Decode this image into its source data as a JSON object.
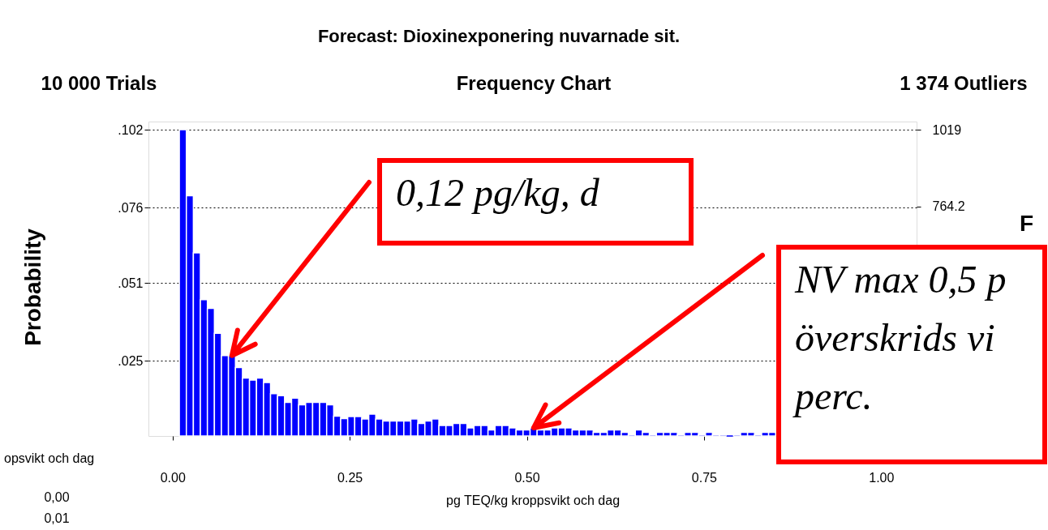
{
  "chart_data": {
    "type": "histogram",
    "title": "Forecast: Dioxinexponering nuvarnade sit.",
    "subtitle": "Frequency Chart",
    "xlabel": "pg TEQ/kg kroppsvikt och dag",
    "ylabel": "Probability",
    "y2label": "F",
    "bins": [
      0.0096,
      0.0195,
      0.0294,
      0.0393,
      0.0492,
      0.0591,
      0.069,
      0.0789,
      0.0888,
      0.0987,
      0.1086,
      0.1185,
      0.1284,
      0.1383,
      0.1482,
      0.1581,
      0.168,
      0.1779,
      0.1878,
      0.1977,
      0.2076,
      0.2175,
      0.2274,
      0.2373,
      0.2472,
      0.2571,
      0.267,
      0.2769,
      0.2868,
      0.2967,
      0.3066,
      0.3165,
      0.3264,
      0.3363,
      0.3462,
      0.3561,
      0.366,
      0.3759,
      0.3858,
      0.3957,
      0.4056,
      0.4155,
      0.4254,
      0.4353,
      0.4452,
      0.4551,
      0.465,
      0.4749,
      0.4848,
      0.4947,
      0.5046,
      0.5145,
      0.5244,
      0.5343,
      0.5442,
      0.5541,
      0.564,
      0.5739,
      0.5838,
      0.5937,
      0.6036,
      0.6135,
      0.6234,
      0.6333,
      0.6432,
      0.6531,
      0.663,
      0.6729,
      0.6828,
      0.6927,
      0.7026,
      0.7125,
      0.7224,
      0.7323,
      0.7422,
      0.7521,
      0.762,
      0.7719,
      0.7818,
      0.7917,
      0.8016,
      0.8115,
      0.8214,
      0.8313,
      0.8412,
      0.8511
    ],
    "values": [
      0.102,
      0.08,
      0.061,
      0.0454,
      0.0425,
      0.0342,
      0.0268,
      0.0268,
      0.0228,
      0.0193,
      0.0186,
      0.0193,
      0.0178,
      0.0141,
      0.0134,
      0.0112,
      0.0126,
      0.0104,
      0.0112,
      0.0112,
      0.0112,
      0.0104,
      0.0066,
      0.0058,
      0.0065,
      0.0065,
      0.0057,
      0.0073,
      0.0057,
      0.005,
      0.005,
      0.005,
      0.005,
      0.0057,
      0.0042,
      0.005,
      0.0057,
      0.0035,
      0.0035,
      0.0042,
      0.0042,
      0.0027,
      0.0035,
      0.0035,
      0.002,
      0.0035,
      0.0035,
      0.0027,
      0.002,
      0.002,
      0.0027,
      0.002,
      0.002,
      0.0027,
      0.0027,
      0.0027,
      0.002,
      0.002,
      0.002,
      0.0012,
      0.0012,
      0.002,
      0.002,
      0.0012,
      0.0005,
      0.002,
      0.0012,
      0.0005,
      0.0012,
      0.0012,
      0.0012,
      0.0005,
      0.0012,
      0.0012,
      0.0005,
      0.0012,
      0.0005,
      0.0005,
      0,
      0.0005,
      0.0012,
      0.0012,
      0.0005,
      0.0012,
      0.0012
    ],
    "color": "#0000ff",
    "xlim": [
      -0.034,
      1.05
    ],
    "xticks": [
      {
        "value": 0,
        "label": "0.00"
      },
      {
        "value": 0.25,
        "label": "0.25"
      },
      {
        "value": 0.5,
        "label": "0.50"
      },
      {
        "value": 0.75,
        "label": "0.75"
      },
      {
        "value": 1,
        "label": "1.00"
      }
    ],
    "ylim": [
      0,
      0.1047
    ],
    "yticks": [
      {
        "value": 0.025,
        "label": ".025"
      },
      {
        "value": 0.051,
        "label": ".051"
      },
      {
        "value": 0.076,
        "label": ".076"
      },
      {
        "value": 0.102,
        "label": ".102"
      }
    ],
    "y2lim": [
      0,
      1046
    ],
    "y2ticks": [
      {
        "value": 764.2,
        "label": "764.2"
      },
      {
        "value": 1019,
        "label": "1019"
      }
    ],
    "grid": "y",
    "annotations": [
      "10 000 Trials",
      "1 374 Outliers",
      {
        "text": "0,12 pg/kg, d",
        "x": 0.0838,
        "y": 0.0268
      },
      {
        "text": "NV max 0,5 p\növerskrids vi\nperc.",
        "x": 0.5096,
        "y": 0.0027
      },
      "opsvikt och dag",
      "0,00",
      "0,01"
    ]
  }
}
